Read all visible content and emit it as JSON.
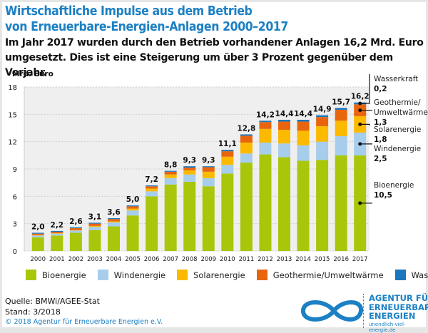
{
  "title_line1": "Wirtschaftliche Impulse aus dem Betrieb",
  "title_line2": "von Erneuerbare-Energien-Anlagen 2000–2017",
  "subtitle_line1": "Im Jahr 2017 wurden durch den Betrieb vorhandener Anlagen 16,2 Mrd. Euro",
  "subtitle_line2": "umgesetzt. Dies ist eine Steigerung um über 3 Prozent gegenüber dem Vorjahr.",
  "source": "Quelle: BMWi/AGEE-Stat",
  "stand": "Stand: 3/2018",
  "copyright": "© 2018 Agentur für Erneuerbare Energien e.V.",
  "logo": {
    "line1": "AGENTUR FÜR",
    "line2": "ERNEUERBARE",
    "line3": "ENERGIEN",
    "url": "unendlich-viel-energie.de",
    "icon": "infinity-icon"
  },
  "chart_data": {
    "type": "bar",
    "stacked": true,
    "title": "Wirtschaftliche Impulse aus dem Betrieb von Erneuerbare-Energien-Anlagen 2000–2017",
    "xlabel": "",
    "ylabel": "Mrd. Euro",
    "ylim": [
      0,
      18
    ],
    "yticks": [
      0,
      3,
      6,
      9,
      12,
      15,
      18
    ],
    "grid": true,
    "legend_position": "bottom",
    "categories": [
      "2000",
      "2001",
      "2002",
      "2003",
      "2004",
      "2005",
      "2006",
      "2007",
      "2008",
      "2009",
      "2010",
      "2011",
      "2012",
      "2013",
      "2014",
      "2015",
      "2016",
      "2017"
    ],
    "totals": [
      "2,0",
      "2,2",
      "2,6",
      "3,1",
      "3,6",
      "5,0",
      "7,2",
      "8,8",
      "9,3",
      "9,3",
      "11,1",
      "12,8",
      "14,2",
      "14,4",
      "14,4",
      "14,9",
      "15,7",
      "16,2"
    ],
    "series": [
      {
        "name": "Bioenergie",
        "color": "#a9c60a",
        "values": [
          1.5,
          1.7,
          2.0,
          2.3,
          2.7,
          3.9,
          6.0,
          7.3,
          7.6,
          7.1,
          8.5,
          9.7,
          10.6,
          10.3,
          9.9,
          10.0,
          10.5,
          10.5
        ]
      },
      {
        "name": "Windenergie",
        "color": "#a6cdec",
        "values": [
          0.2,
          0.2,
          0.25,
          0.35,
          0.45,
          0.55,
          0.55,
          0.7,
          0.8,
          0.9,
          0.95,
          1.0,
          1.3,
          1.5,
          1.7,
          2.0,
          2.1,
          2.5
        ]
      },
      {
        "name": "Solarenergie",
        "color": "#fbb900",
        "values": [
          0.05,
          0.05,
          0.05,
          0.1,
          0.1,
          0.2,
          0.3,
          0.4,
          0.45,
          0.7,
          0.9,
          1.2,
          1.5,
          1.5,
          1.6,
          1.7,
          1.7,
          1.8
        ]
      },
      {
        "name": "Geothermie/Umweltwärme",
        "color": "#e8650e",
        "values": [
          0.15,
          0.15,
          0.2,
          0.25,
          0.25,
          0.25,
          0.25,
          0.3,
          0.3,
          0.5,
          0.6,
          0.75,
          0.75,
          0.9,
          1.0,
          1.0,
          1.2,
          1.3
        ]
      },
      {
        "name": "Wasserkraft",
        "color": "#1a76bd",
        "values": [
          0.1,
          0.1,
          0.1,
          0.1,
          0.1,
          0.1,
          0.1,
          0.1,
          0.15,
          0.1,
          0.15,
          0.15,
          0.15,
          0.2,
          0.2,
          0.2,
          0.2,
          0.2
        ]
      }
    ],
    "annotations": [
      {
        "label": "Wasserkraft",
        "value": "0,2"
      },
      {
        "label": "Geothermie/",
        "label2": "Umweltwärme",
        "value": "1,3"
      },
      {
        "label": "Solarenergie",
        "value": "1,8"
      },
      {
        "label": "Windenergie",
        "value": "2,5"
      },
      {
        "label": "Bioenergie",
        "value": "10,5"
      }
    ]
  }
}
